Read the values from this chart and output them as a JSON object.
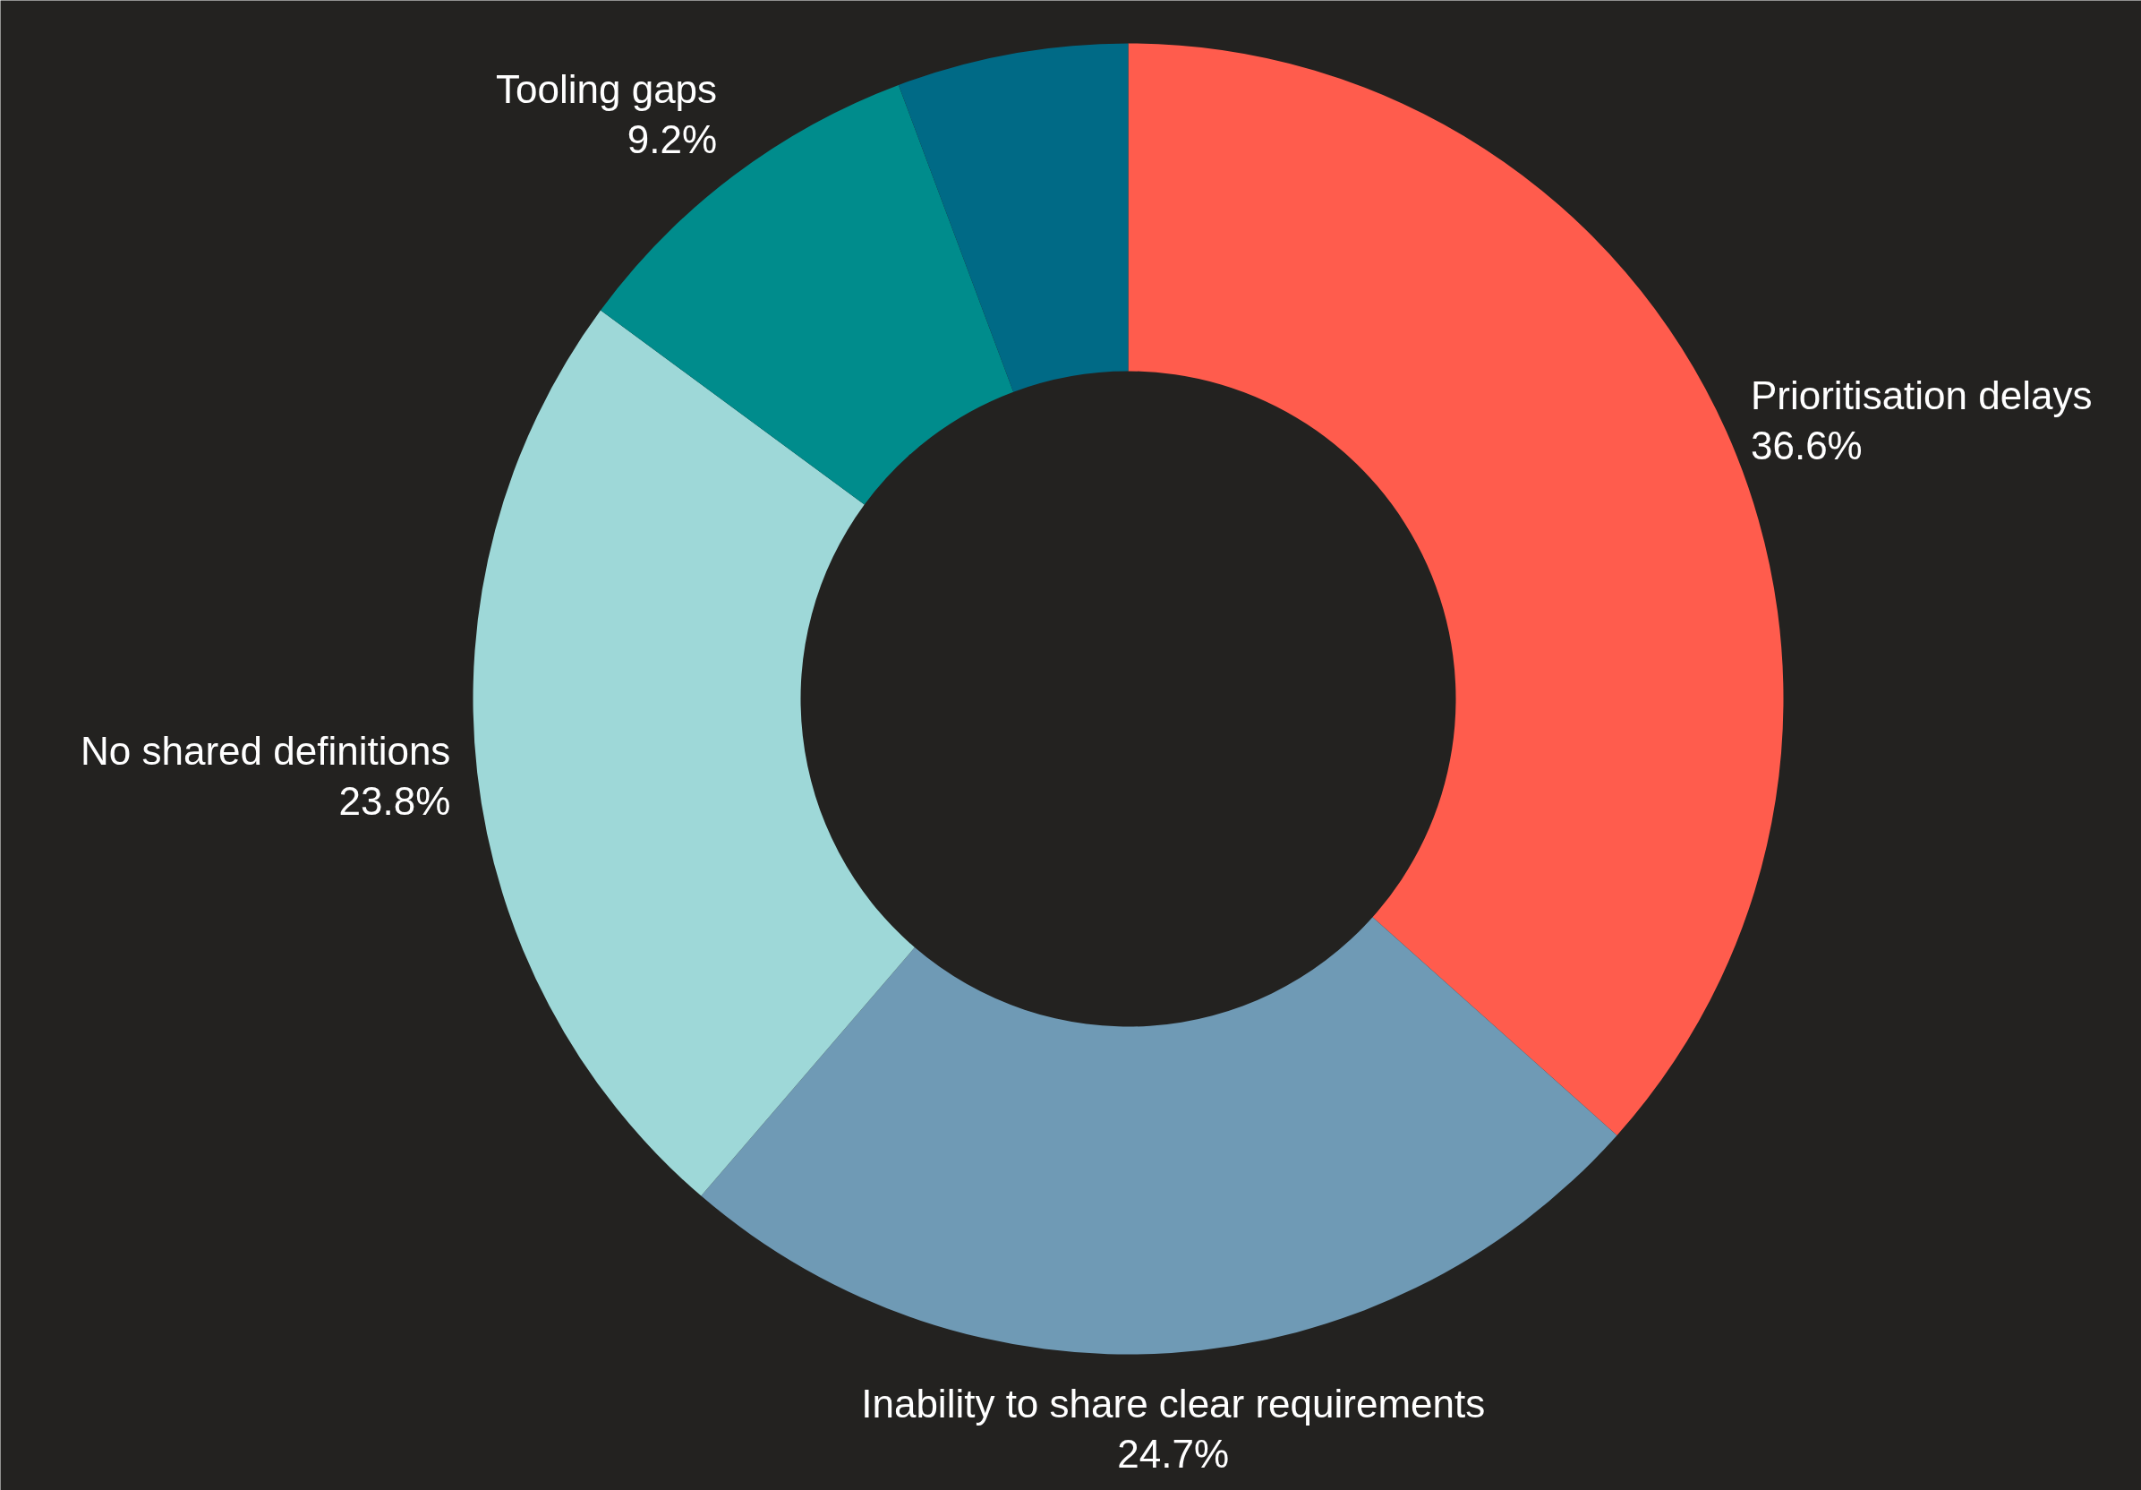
{
  "chart_data": {
    "type": "donut",
    "categories": [
      "Prioritisation delays",
      "Inability to share clear requirements",
      "No shared definitions",
      "Tooling gaps",
      null
    ],
    "values": [
      36.6,
      24.7,
      23.8,
      9.2,
      5.7
    ],
    "value_labels": [
      "36.6%",
      "24.7%",
      "23.8%",
      "9.2%",
      null
    ],
    "colors": [
      "#ff5c4d",
      "#6f9ab5",
      "#9ed8d8",
      "#008c8c",
      "#006a86"
    ],
    "legend": false
  }
}
